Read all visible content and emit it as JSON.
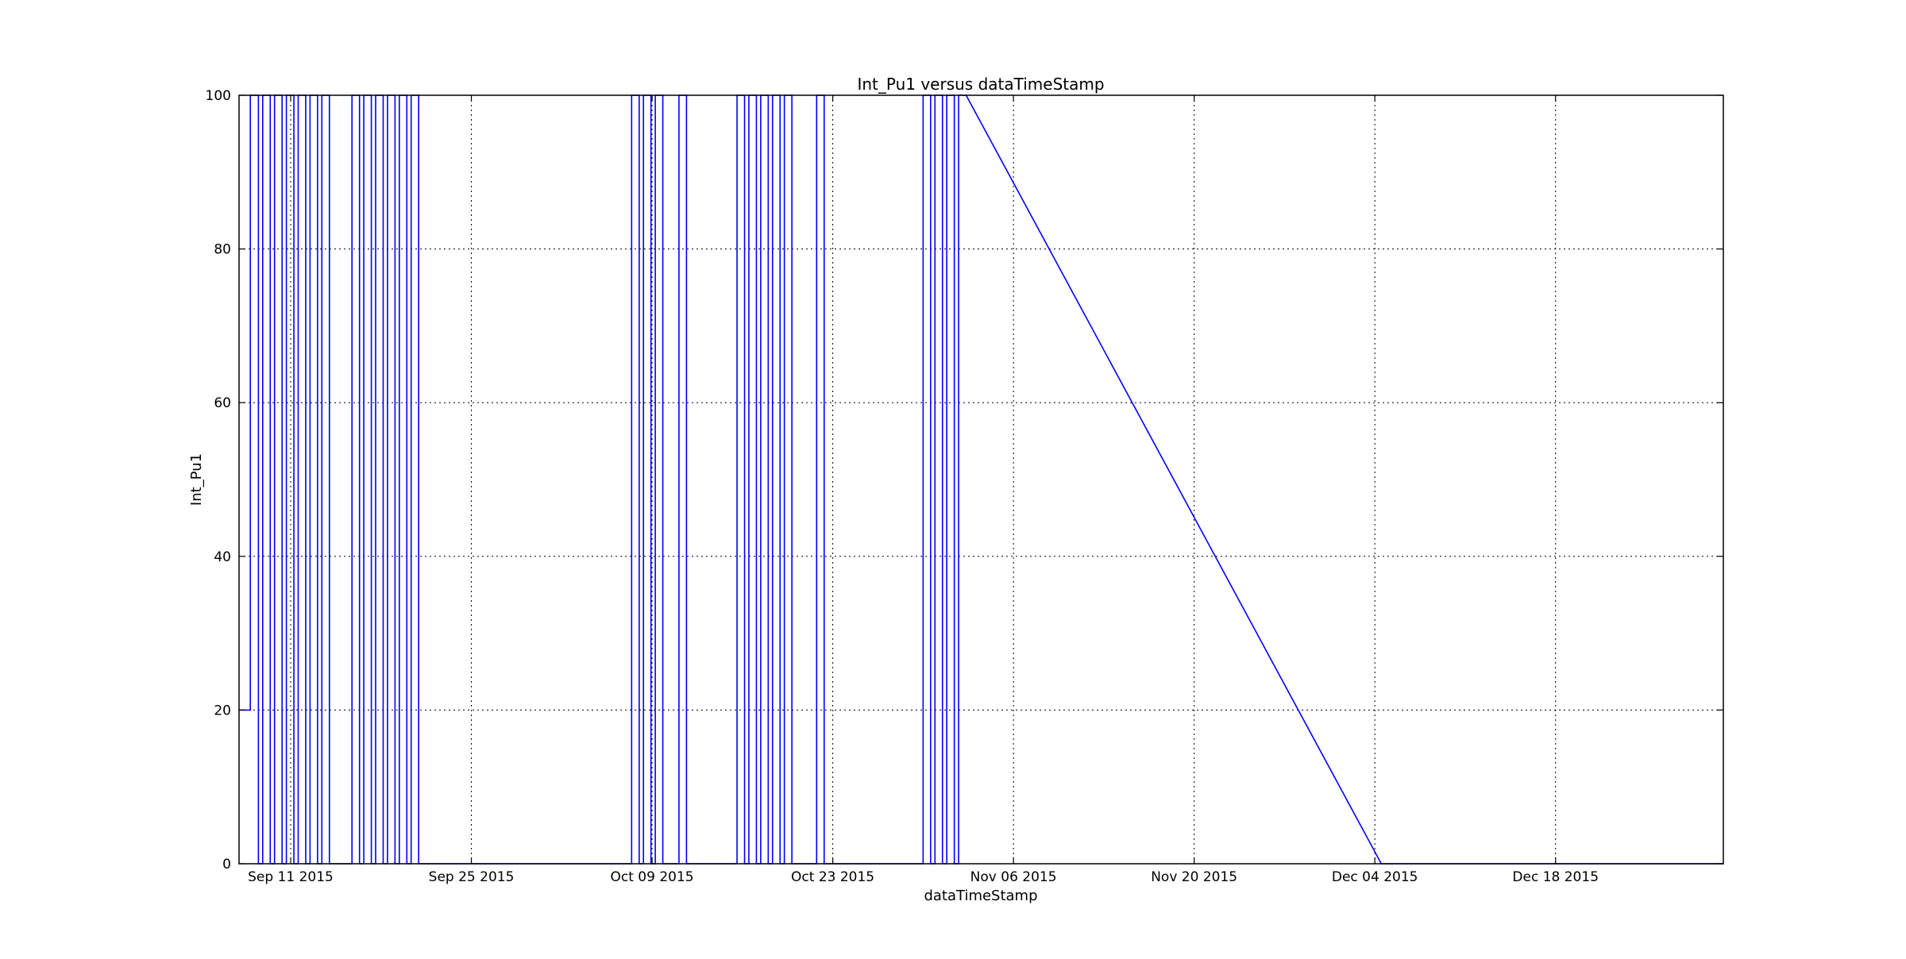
{
  "chart_data": {
    "type": "line",
    "title": "Int_Pu1 versus dataTimeStamp",
    "xlabel": "dataTimeStamp",
    "ylabel": "Int_Pu1",
    "xlim": [
      "2015-09-07",
      "2015-12-31"
    ],
    "ylim": [
      0,
      100
    ],
    "x_tick_labels": [
      "Sep 11 2015",
      "Sep 25 2015",
      "Oct 09 2015",
      "Oct 23 2015",
      "Nov 06 2015",
      "Nov 20 2015",
      "Dec 04 2015",
      "Dec 18 2015"
    ],
    "x_tick_dates": [
      "2015-09-11",
      "2015-09-25",
      "2015-10-09",
      "2015-10-23",
      "2015-11-06",
      "2015-11-20",
      "2015-12-04",
      "2015-12-18"
    ],
    "y_ticks": [
      0,
      20,
      40,
      60,
      80,
      100
    ],
    "grid": true,
    "series": [
      {
        "color": "#0000ff",
        "points": [
          [
            "2015-09-07 00:00",
            20
          ],
          [
            "2015-09-07 21:00",
            20
          ],
          [
            "2015-09-07 21:00",
            100
          ],
          [
            "2015-09-08 12:00",
            100
          ],
          [
            "2015-09-08 12:00",
            0
          ],
          [
            "2015-09-08 20:00",
            0
          ],
          [
            "2015-09-08 20:00",
            100
          ],
          [
            "2015-09-09 10:00",
            100
          ],
          [
            "2015-09-09 10:00",
            0
          ],
          [
            "2015-09-09 18:00",
            0
          ],
          [
            "2015-09-09 18:00",
            100
          ],
          [
            "2015-09-10 08:00",
            100
          ],
          [
            "2015-09-10 08:00",
            0
          ],
          [
            "2015-09-10 16:00",
            0
          ],
          [
            "2015-09-10 16:00",
            100
          ],
          [
            "2015-09-11 06:00",
            100
          ],
          [
            "2015-09-11 06:00",
            0
          ],
          [
            "2015-09-11 14:00",
            0
          ],
          [
            "2015-09-11 14:00",
            100
          ],
          [
            "2015-09-12 04:00",
            100
          ],
          [
            "2015-09-12 04:00",
            0
          ],
          [
            "2015-09-12 12:00",
            0
          ],
          [
            "2015-09-12 12:00",
            100
          ],
          [
            "2015-09-13 02:00",
            100
          ],
          [
            "2015-09-13 02:00",
            0
          ],
          [
            "2015-09-13 10:00",
            0
          ],
          [
            "2015-09-13 10:00",
            100
          ],
          [
            "2015-09-14 00:00",
            100
          ],
          [
            "2015-09-14 00:00",
            0
          ],
          [
            "2015-09-15 18:00",
            0
          ],
          [
            "2015-09-15 18:00",
            100
          ],
          [
            "2015-09-16 08:00",
            100
          ],
          [
            "2015-09-16 08:00",
            0
          ],
          [
            "2015-09-16 16:00",
            0
          ],
          [
            "2015-09-16 16:00",
            100
          ],
          [
            "2015-09-17 06:00",
            100
          ],
          [
            "2015-09-17 06:00",
            0
          ],
          [
            "2015-09-17 14:00",
            0
          ],
          [
            "2015-09-17 14:00",
            100
          ],
          [
            "2015-09-18 04:00",
            100
          ],
          [
            "2015-09-18 04:00",
            0
          ],
          [
            "2015-09-18 12:00",
            0
          ],
          [
            "2015-09-18 12:00",
            100
          ],
          [
            "2015-09-19 02:00",
            100
          ],
          [
            "2015-09-19 02:00",
            0
          ],
          [
            "2015-09-19 10:00",
            0
          ],
          [
            "2015-09-19 10:00",
            100
          ],
          [
            "2015-09-20 00:00",
            100
          ],
          [
            "2015-09-20 00:00",
            0
          ],
          [
            "2015-09-20 08:00",
            0
          ],
          [
            "2015-09-20 08:00",
            100
          ],
          [
            "2015-09-20 22:00",
            100
          ],
          [
            "2015-09-20 22:00",
            0
          ],
          [
            "2015-10-07 10:00",
            0
          ],
          [
            "2015-10-07 10:00",
            100
          ],
          [
            "2015-10-08 00:00",
            100
          ],
          [
            "2015-10-08 00:00",
            0
          ],
          [
            "2015-10-08 08:00",
            0
          ],
          [
            "2015-10-08 08:00",
            100
          ],
          [
            "2015-10-08 22:00",
            100
          ],
          [
            "2015-10-08 22:00",
            0
          ],
          [
            "2015-10-09 06:00",
            0
          ],
          [
            "2015-10-09 06:00",
            100
          ],
          [
            "2015-10-09 20:00",
            100
          ],
          [
            "2015-10-09 20:00",
            0
          ],
          [
            "2015-10-11 02:00",
            0
          ],
          [
            "2015-10-11 02:00",
            100
          ],
          [
            "2015-10-11 16:00",
            100
          ],
          [
            "2015-10-11 16:00",
            0
          ],
          [
            "2015-10-15 14:00",
            0
          ],
          [
            "2015-10-15 14:00",
            100
          ],
          [
            "2015-10-16 04:00",
            100
          ],
          [
            "2015-10-16 04:00",
            0
          ],
          [
            "2015-10-16 12:00",
            0
          ],
          [
            "2015-10-16 12:00",
            100
          ],
          [
            "2015-10-17 02:00",
            100
          ],
          [
            "2015-10-17 02:00",
            0
          ],
          [
            "2015-10-17 10:00",
            0
          ],
          [
            "2015-10-17 10:00",
            100
          ],
          [
            "2015-10-18 00:00",
            100
          ],
          [
            "2015-10-18 00:00",
            0
          ],
          [
            "2015-10-18 08:00",
            0
          ],
          [
            "2015-10-18 08:00",
            100
          ],
          [
            "2015-10-18 22:00",
            100
          ],
          [
            "2015-10-18 22:00",
            0
          ],
          [
            "2015-10-19 06:00",
            0
          ],
          [
            "2015-10-19 06:00",
            100
          ],
          [
            "2015-10-19 20:00",
            100
          ],
          [
            "2015-10-19 20:00",
            0
          ],
          [
            "2015-10-21 18:00",
            0
          ],
          [
            "2015-10-21 18:00",
            100
          ],
          [
            "2015-10-22 08:00",
            100
          ],
          [
            "2015-10-22 08:00",
            0
          ],
          [
            "2015-10-30 00:00",
            0
          ],
          [
            "2015-10-30 00:00",
            100
          ],
          [
            "2015-10-30 14:00",
            100
          ],
          [
            "2015-10-30 14:00",
            0
          ],
          [
            "2015-10-30 22:00",
            0
          ],
          [
            "2015-10-30 22:00",
            100
          ],
          [
            "2015-10-31 12:00",
            100
          ],
          [
            "2015-10-31 12:00",
            0
          ],
          [
            "2015-10-31 20:00",
            0
          ],
          [
            "2015-10-31 20:00",
            100
          ],
          [
            "2015-11-01 10:00",
            100
          ],
          [
            "2015-11-01 10:00",
            0
          ],
          [
            "2015-11-01 18:00",
            0
          ],
          [
            "2015-11-01 18:00",
            100
          ],
          [
            "2015-11-02 08:00",
            100
          ],
          [
            "2015-12-04 12:00",
            0
          ],
          [
            "2015-12-31 00:00",
            0
          ]
        ]
      }
    ]
  }
}
